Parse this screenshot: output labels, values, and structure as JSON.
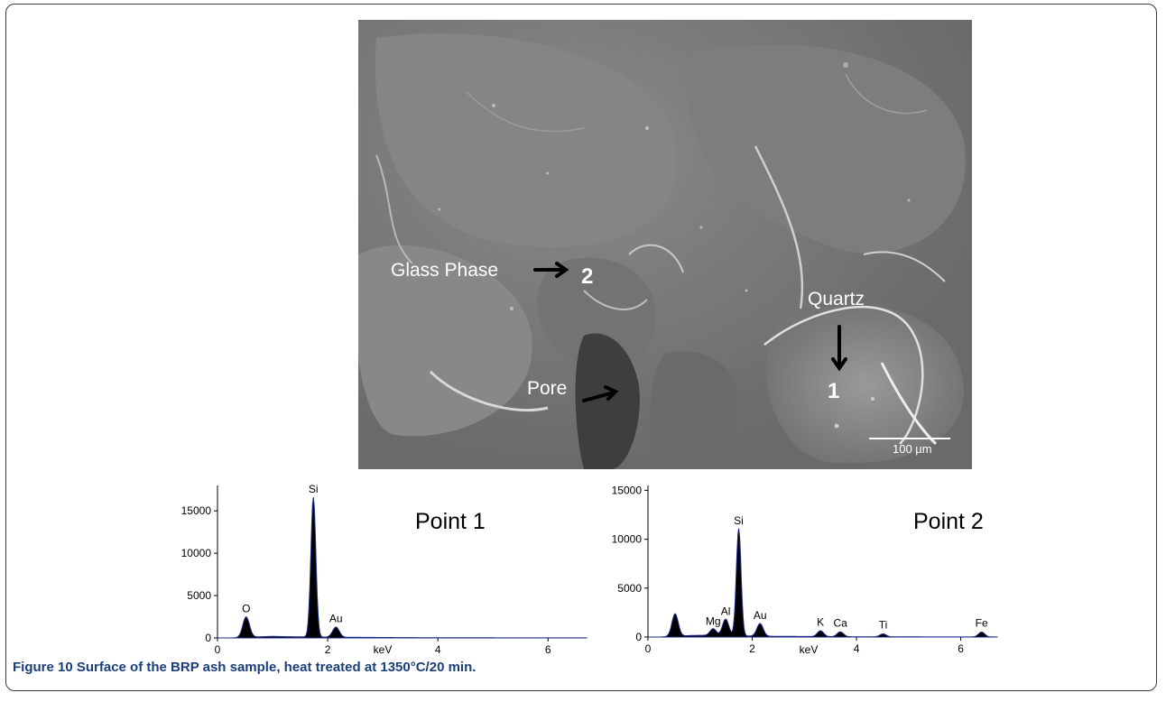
{
  "figure": {
    "label": "Figure 10",
    "caption": "Surface of the BRP ash sample, heat treated at 1350°C/20 min."
  },
  "micrograph": {
    "annotations": {
      "glass_phase": "Glass Phase",
      "point_2": "2",
      "quartz": "Quartz",
      "point_1": "1",
      "pore": "Pore"
    },
    "scale_bar": "100 µm"
  },
  "chart_data": [
    {
      "type": "line",
      "title": "Point 1",
      "xlabel": "keV",
      "ylabel": "",
      "xlim": [
        0,
        6.7
      ],
      "ylim": [
        0,
        18000
      ],
      "x_ticks": [
        "0",
        "2",
        "4",
        "6"
      ],
      "y_ticks": [
        "0",
        "5000",
        "10000",
        "15000"
      ],
      "peaks": [
        {
          "element": "O",
          "x": 0.52,
          "y": 2400
        },
        {
          "element": "Si",
          "x": 1.74,
          "y": 16500
        },
        {
          "element": "Au",
          "x": 2.15,
          "y": 1200
        }
      ]
    },
    {
      "type": "line",
      "title": "Point 2",
      "xlabel": "keV",
      "ylabel": "",
      "xlim": [
        0,
        6.7
      ],
      "ylim": [
        0,
        15500
      ],
      "x_ticks": [
        "0",
        "2",
        "4",
        "6"
      ],
      "y_ticks": [
        "0",
        "5000",
        "10000",
        "15000"
      ],
      "peaks": [
        {
          "element": "",
          "x": 0.52,
          "y": 2300
        },
        {
          "element": "Mg",
          "x": 1.25,
          "y": 700
        },
        {
          "element": "Al",
          "x": 1.49,
          "y": 1700
        },
        {
          "element": "Si",
          "x": 1.74,
          "y": 11000
        },
        {
          "element": "Au",
          "x": 2.15,
          "y": 1300
        },
        {
          "element": "K",
          "x": 3.31,
          "y": 600
        },
        {
          "element": "Ca",
          "x": 3.69,
          "y": 500
        },
        {
          "element": "Ti",
          "x": 4.51,
          "y": 300
        },
        {
          "element": "Fe",
          "x": 6.4,
          "y": 500
        }
      ]
    }
  ]
}
